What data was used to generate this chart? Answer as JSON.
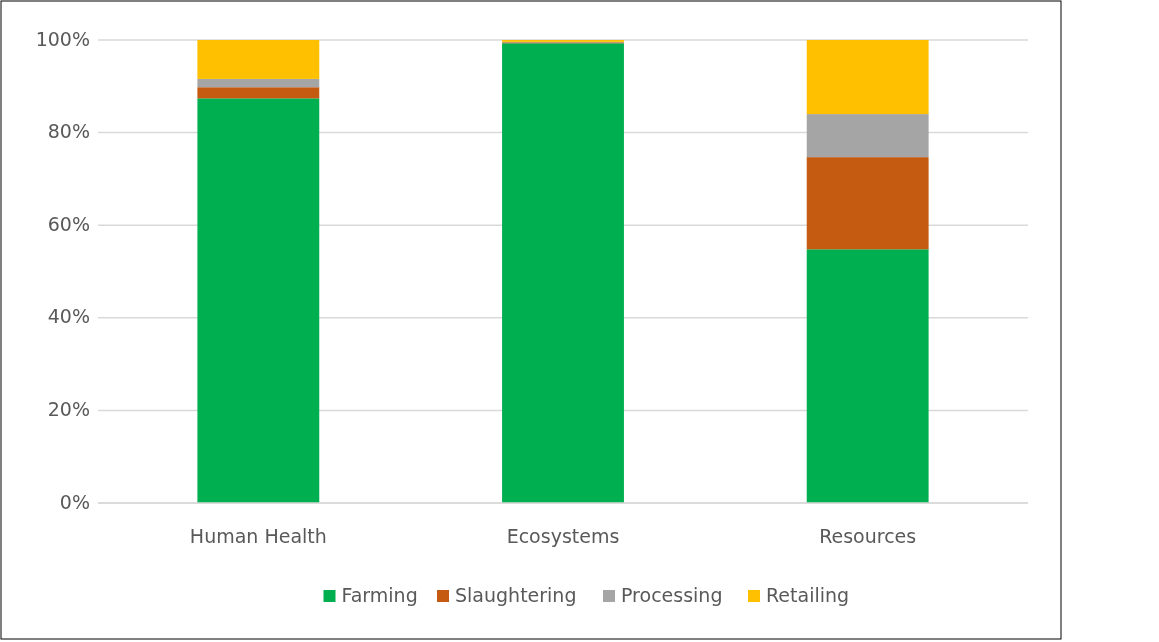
{
  "chart_data": {
    "type": "bar",
    "stacked": true,
    "categories": [
      "Human Health",
      "Ecosystems",
      "Resources"
    ],
    "series": [
      {
        "name": "Farming",
        "color": "#00b050",
        "values": [
          87.4,
          99.3,
          54.8
        ]
      },
      {
        "name": "Slaughtering",
        "color": "#c55a11",
        "values": [
          2.4,
          0.2,
          19.9
        ]
      },
      {
        "name": "Processing",
        "color": "#a5a5a5",
        "values": [
          1.8,
          0.1,
          9.3
        ]
      },
      {
        "name": "Retailing",
        "color": "#ffc000",
        "values": [
          8.4,
          0.4,
          16.0
        ]
      }
    ],
    "ylim": [
      0,
      100
    ],
    "yticks": [
      {
        "value": 0,
        "label": "0%"
      },
      {
        "value": 20,
        "label": "20%"
      },
      {
        "value": 40,
        "label": "40%"
      },
      {
        "value": 60,
        "label": "60%"
      },
      {
        "value": 80,
        "label": "80%"
      },
      {
        "value": 100,
        "label": "100%"
      }
    ],
    "grid": "y",
    "legend": "bottom"
  }
}
